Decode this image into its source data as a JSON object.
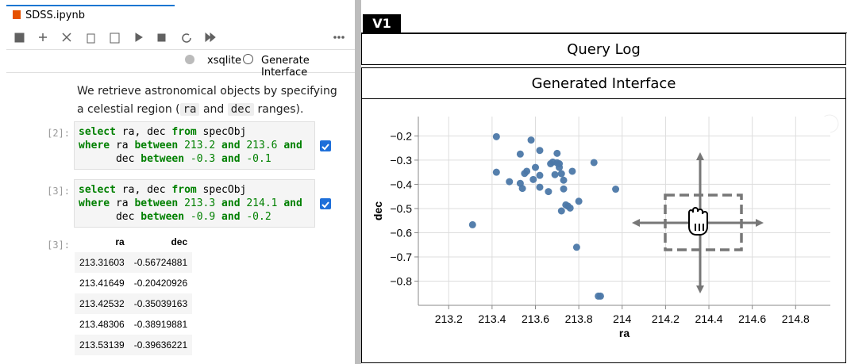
{
  "notebook": {
    "tab": "SDSS.ipynb",
    "kernel": "xsqlite",
    "toolbar_action": "Generate Interface",
    "markdown": [
      "We retrieve astronomical objects by specifying",
      "a celestial region (",
      "ra",
      "and",
      "dec",
      "ranges)."
    ],
    "cells": [
      {
        "prompt": "[2]:",
        "lines": [
          "select ra, dec from specObj",
          "where ra between 213.2 and 213.6 and",
          "      dec between -0.3 and -0.1"
        ]
      },
      {
        "prompt": "[3]:",
        "lines": [
          "select ra, dec from specObj",
          "where ra between 213.3 and 214.1 and",
          "      dec between -0.9 and -0.2"
        ]
      }
    ],
    "output": {
      "prompt": "[3]:",
      "columns": [
        "ra",
        "dec"
      ],
      "rows": [
        [
          "213.31603",
          "-0.56724881"
        ],
        [
          "213.41649",
          "-0.20420926"
        ],
        [
          "213.42532",
          "-0.35039163"
        ],
        [
          "213.48306",
          "-0.38919881"
        ],
        [
          "213.53139",
          "-0.39636221"
        ]
      ]
    }
  },
  "panel": {
    "tab": "V1",
    "query_log": "Query Log",
    "interface": "Generated Interface"
  },
  "chart_data": {
    "type": "scatter",
    "xlabel": "ra",
    "ylabel": "dec",
    "color": "#4c78a8",
    "grid": true,
    "x": [
      213.42,
      213.31,
      213.42,
      213.48,
      213.53,
      213.53,
      213.58,
      213.62,
      213.56,
      213.55,
      213.54,
      213.59,
      213.6,
      213.62,
      213.62,
      213.66,
      213.67,
      213.68,
      213.7,
      213.7,
      213.71,
      213.69,
      213.72,
      213.71,
      213.73,
      213.73,
      213.72,
      213.74,
      213.75,
      213.76,
      213.77,
      213.8,
      213.79,
      213.87,
      213.97,
      213.89,
      213.9
    ],
    "y": [
      -0.203,
      -0.567,
      -0.35,
      -0.389,
      -0.396,
      -0.275,
      -0.217,
      -0.26,
      -0.346,
      -0.355,
      -0.417,
      -0.38,
      -0.33,
      -0.363,
      -0.412,
      -0.43,
      -0.315,
      -0.308,
      -0.272,
      -0.311,
      -0.33,
      -0.36,
      -0.356,
      -0.315,
      -0.383,
      -0.419,
      -0.51,
      -0.485,
      -0.49,
      -0.498,
      -0.346,
      -0.47,
      -0.66,
      -0.31,
      -0.42,
      -0.862,
      -0.862
    ],
    "xlim": [
      213.06,
      214.96
    ],
    "ylim": [
      -0.9,
      -0.12
    ],
    "xticks": [
      213.2,
      213.4,
      213.6,
      213.8,
      214.0,
      214.2,
      214.4,
      214.6,
      214.8
    ],
    "yticks": [
      {
        "value": -0.2,
        "label": "−0.2"
      },
      {
        "value": -0.3,
        "label": "−0.3"
      },
      {
        "value": -0.4,
        "label": "−0.4"
      },
      {
        "value": -0.5,
        "label": "−0.5"
      },
      {
        "value": -0.6,
        "label": "−0.6"
      },
      {
        "value": -0.7,
        "label": "−0.7"
      },
      {
        "value": -0.8,
        "label": "−0.8"
      }
    ]
  }
}
